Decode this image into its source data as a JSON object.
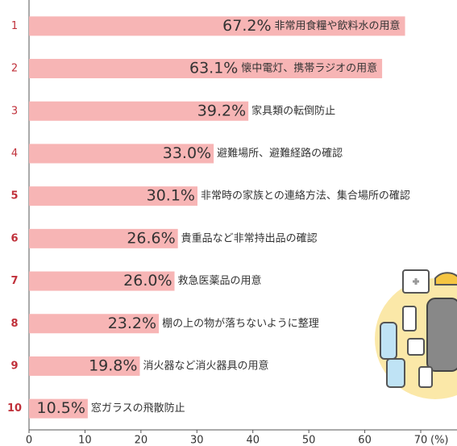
{
  "chart_data": {
    "type": "bar",
    "orientation": "horizontal",
    "categories": [
      "1",
      "2",
      "3",
      "4",
      "5",
      "6",
      "7",
      "8",
      "9",
      "10"
    ],
    "labels": [
      "非常用食糧や飲料水の用意",
      "懐中電灯、携帯ラジオの用意",
      "家具類の転倒防止",
      "避難場所、避難経路の確認",
      "非常時の家族との連絡方法、集合場所の確認",
      "貴重品など非常持出品の確認",
      "救急医薬品の用意",
      "棚の上の物が落ちないように整理",
      "消火器など消火器具の用意",
      "窓ガラスの飛散防止"
    ],
    "values": [
      67.2,
      63.1,
      39.2,
      33.0,
      30.1,
      26.6,
      26.0,
      23.2,
      19.8,
      10.5
    ],
    "value_labels": [
      "67.2%",
      "63.1%",
      "39.2%",
      "33.0%",
      "30.1%",
      "26.6%",
      "26.0%",
      "23.2%",
      "19.8%",
      "10.5%"
    ],
    "color": "#f7b5b5",
    "xlim": [
      0,
      70
    ],
    "xticks": [
      0,
      10,
      20,
      30,
      40,
      50,
      60,
      70
    ],
    "x_unit": "(%)"
  }
}
